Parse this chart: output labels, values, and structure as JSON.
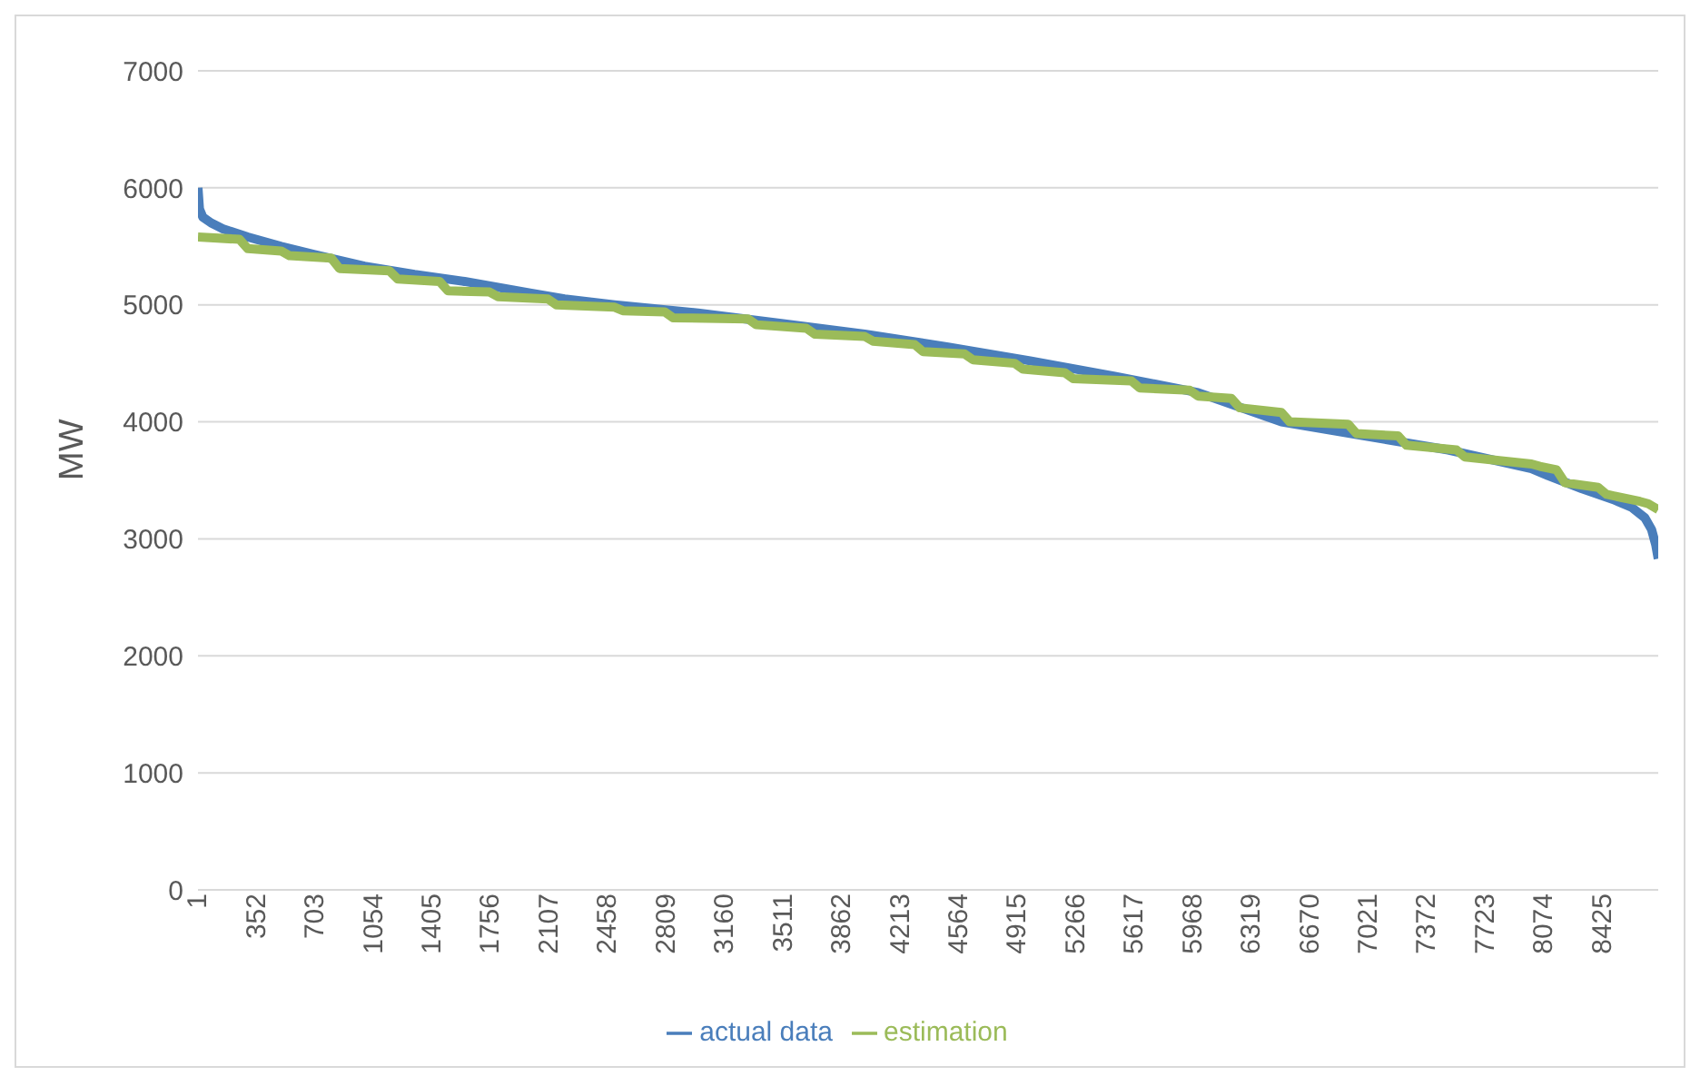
{
  "chart_data": {
    "type": "line",
    "ylabel": "MW",
    "xlim": [
      1,
      8760
    ],
    "xticks": [
      1,
      352,
      703,
      1054,
      1405,
      1756,
      2107,
      2458,
      2809,
      3160,
      3511,
      3862,
      4213,
      4564,
      4915,
      5266,
      5617,
      5968,
      6319,
      6670,
      7021,
      7372,
      7723,
      8074,
      8425
    ],
    "ylim": [
      0,
      7000
    ],
    "yticks": [
      0,
      1000,
      2000,
      3000,
      4000,
      5000,
      6000,
      7000
    ],
    "grid": "y",
    "legend": "bottom",
    "marker": "none",
    "line_style": "solid",
    "series": [
      {
        "name": "actual data",
        "color": "#4a7ebb",
        "x": [
          1,
          10,
          30,
          80,
          150,
          300,
          500,
          700,
          1000,
          1300,
          1600,
          2000,
          2200,
          2500,
          3000,
          3500,
          4000,
          4500,
          5000,
          5500,
          6000,
          6500,
          7000,
          7500,
          8000,
          8100,
          8300,
          8500,
          8600,
          8680,
          8720,
          8745,
          8760
        ],
        "values": [
          6000,
          5820,
          5750,
          5700,
          5650,
          5580,
          5500,
          5430,
          5330,
          5260,
          5200,
          5100,
          5050,
          5000,
          4930,
          4840,
          4750,
          4640,
          4520,
          4390,
          4250,
          4000,
          3880,
          3760,
          3600,
          3540,
          3430,
          3330,
          3270,
          3180,
          3080,
          2950,
          2830
        ]
      },
      {
        "name": "estimation",
        "color": "#9bbb59",
        "x": [
          1,
          250,
          300,
          500,
          550,
          800,
          850,
          1150,
          1200,
          1450,
          1500,
          1750,
          1800,
          2100,
          2150,
          2500,
          2550,
          2800,
          2850,
          3300,
          3350,
          3650,
          3700,
          4000,
          4050,
          4300,
          4350,
          4600,
          4650,
          4900,
          4950,
          5200,
          5250,
          5600,
          5650,
          5950,
          6000,
          6200,
          6250,
          6500,
          6550,
          6900,
          6950,
          7200,
          7250,
          7550,
          7600,
          8000,
          8050,
          8150,
          8200,
          8400,
          8450,
          8650,
          8700,
          8760
        ],
        "values": [
          5580,
          5560,
          5480,
          5460,
          5420,
          5400,
          5310,
          5290,
          5220,
          5200,
          5120,
          5110,
          5070,
          5050,
          5000,
          4980,
          4950,
          4940,
          4890,
          4880,
          4830,
          4800,
          4750,
          4730,
          4690,
          4660,
          4600,
          4580,
          4530,
          4500,
          4450,
          4420,
          4370,
          4350,
          4290,
          4270,
          4220,
          4200,
          4120,
          4080,
          4000,
          3980,
          3900,
          3880,
          3800,
          3760,
          3700,
          3640,
          3620,
          3590,
          3480,
          3440,
          3380,
          3320,
          3300,
          3250
        ]
      }
    ]
  }
}
